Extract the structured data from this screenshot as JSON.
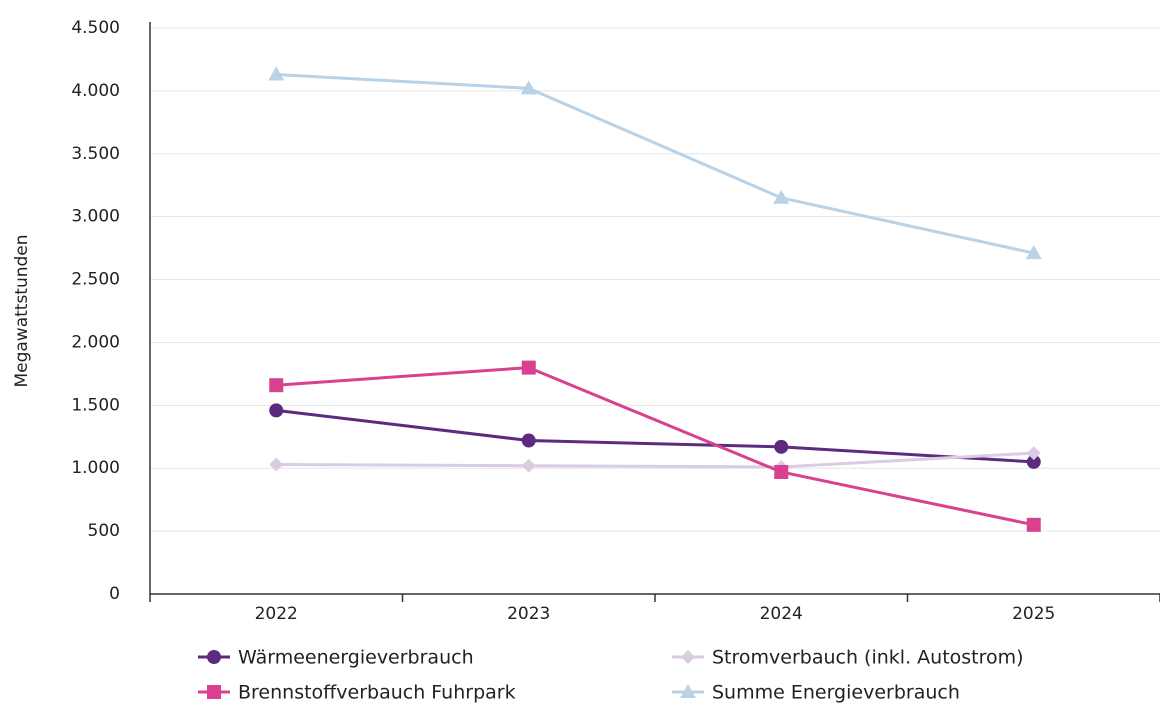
{
  "chart_data": {
    "type": "line",
    "y_label": "Megawattstunden",
    "categories": [
      "2022",
      "2023",
      "2024",
      "2025"
    ],
    "series": [
      {
        "name": "Wärmeenergieverbrauch",
        "color": "#5c2a7e",
        "marker": "circle",
        "values": [
          1460,
          1220,
          1170,
          1050
        ]
      },
      {
        "name": "Stromverbauch (inkl. Autostrom)",
        "color": "#d9cce3",
        "marker": "diamond",
        "values": [
          1030,
          1020,
          1010,
          1120
        ]
      },
      {
        "name": "Brennstoffverbauch Fuhrpark",
        "color": "#d9408f",
        "marker": "square",
        "values": [
          1660,
          1800,
          970,
          550
        ]
      },
      {
        "name": "Summe Energieverbrauch",
        "color": "#b8d2e8",
        "marker": "triangle",
        "values": [
          4130,
          4020,
          3150,
          2710
        ]
      }
    ],
    "ylim": [
      0,
      4500
    ],
    "yticks": [
      0,
      500,
      {
        "value": 1000,
        "label": "1.000"
      },
      {
        "value": 1500,
        "label": "1.500"
      },
      {
        "value": 2000,
        "label": "2.000"
      },
      {
        "value": 2500,
        "label": "2.500"
      },
      {
        "value": 3000,
        "label": "3.000"
      },
      {
        "value": 3500,
        "label": "3.500"
      },
      {
        "value": 4000,
        "label": "4.000"
      },
      {
        "value": 4500,
        "label": "4.500"
      }
    ],
    "grid": true
  }
}
